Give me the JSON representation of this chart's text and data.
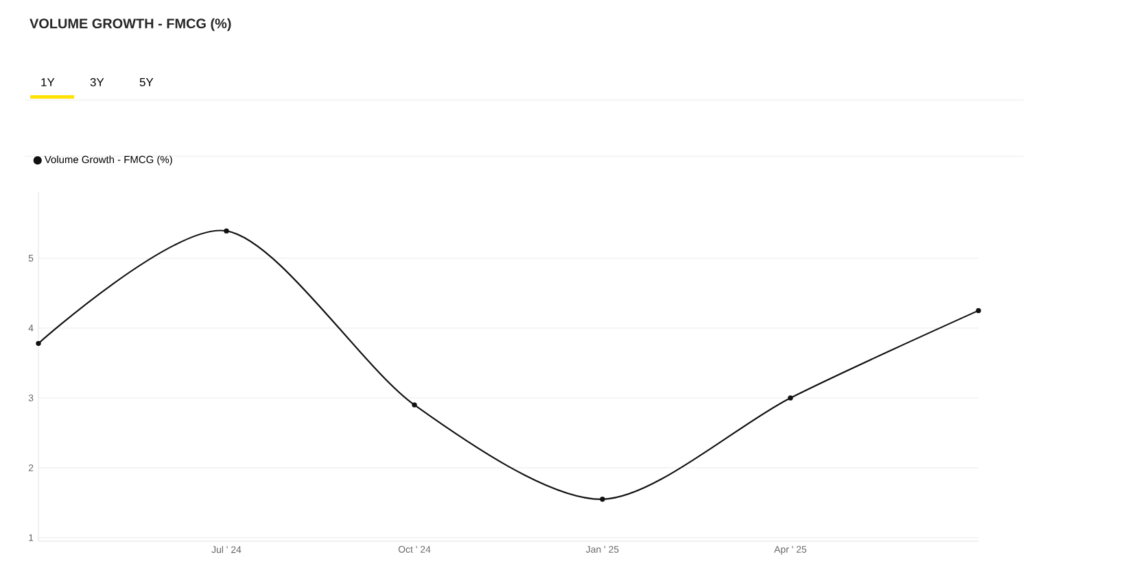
{
  "chart_data": {
    "type": "line",
    "title": "VOLUME GROWTH - FMCG (%)",
    "annotations": [
      "1Y",
      "3Y",
      "5Y"
    ],
    "categories": [
      null,
      "Jul ' 24",
      "Oct ' 24",
      "Jan ' 25",
      "Apr ' 25",
      null
    ],
    "series": [
      {
        "name": "Volume Growth - FMCG  (%)",
        "color": "#111111",
        "values": [
          3.78,
          5.39,
          2.9,
          1.55,
          3.0,
          4.25
        ]
      }
    ],
    "ylim": [
      0.95,
      5.95
    ],
    "yticks": [
      1,
      2,
      3,
      4,
      5
    ],
    "grid": "y",
    "legend": "top left",
    "marker": "circle",
    "line_style": "solid"
  }
}
